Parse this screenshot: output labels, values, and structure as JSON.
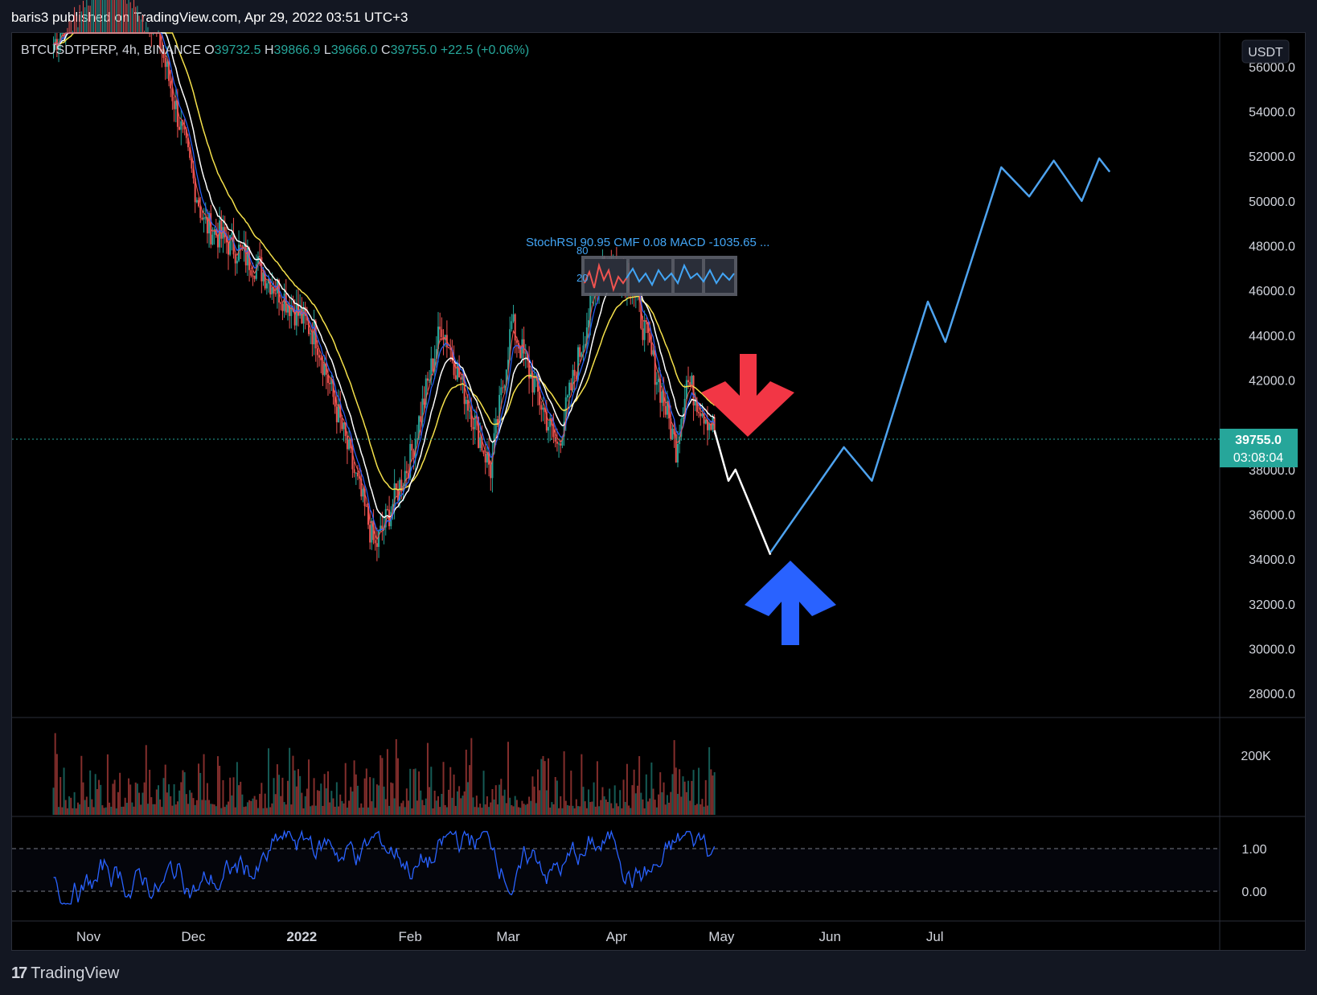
{
  "header": {
    "publisher": "baris3 published on TradingView.com, Apr 29, 2022 03:51 UTC+3"
  },
  "legend": {
    "symbol": "BTCUSDTPERP, 4h, BINANCE",
    "open_label": "O",
    "open": "39732.5",
    "high_label": "H",
    "high": "39866.9",
    "low_label": "L",
    "low": "39666.0",
    "close_label": "C",
    "close": "39755.0",
    "change": "+22.5 (+0.06%)"
  },
  "price_axis": {
    "currency": "USDT",
    "ticks": [
      "56000.0",
      "54000.0",
      "52000.0",
      "50000.0",
      "48000.0",
      "46000.0",
      "44000.0",
      "42000.0",
      "38000.0",
      "36000.0",
      "34000.0",
      "32000.0",
      "30000.0",
      "28000.0"
    ],
    "last_price": "39755.0",
    "countdown": "03:08:04"
  },
  "volume_axis": {
    "ticks": [
      "200K"
    ]
  },
  "stochrsi_axis": {
    "ticks": [
      "1.00",
      "0.00"
    ]
  },
  "time_axis": {
    "ticks": [
      "Nov",
      "Dec",
      "2022",
      "Feb",
      "Mar",
      "Apr",
      "May",
      "Jun",
      "Jul"
    ]
  },
  "overlay": {
    "label": "StochRSI 90.95 CMF 0.08 MACD -1035.65 ...",
    "level_80": "80",
    "level_20": "20"
  },
  "footer": {
    "brand": "TradingView"
  },
  "colors": {
    "up": "#26a69a",
    "down": "#ef5350",
    "ema_white": "#ffffff",
    "ema_yellow": "#f5e14b",
    "ema_red": "#ef5350",
    "ema_blue": "#2962ff",
    "projection_blue": "#4ea3ef",
    "arrow_red": "#f23645",
    "arrow_blue": "#2962ff",
    "stoch_line": "#2962ff"
  },
  "chart_data": {
    "type": "line",
    "title": "BTCUSDTPERP, 4h, BINANCE",
    "xlabel": "",
    "ylabel": "",
    "ylim": [
      27000,
      57500
    ],
    "x_ticks": [
      "Nov",
      "Dec",
      "2022",
      "Feb",
      "Mar",
      "Apr",
      "May",
      "Jun",
      "Jul"
    ],
    "series": [
      {
        "kind": "price_path",
        "x": [
          "2021-10-22",
          "2021-11-05",
          "2021-11-20",
          "2021-12-04",
          "2021-12-20",
          "2022-01-05",
          "2022-01-22",
          "2022-02-01",
          "2022-02-10",
          "2022-02-24",
          "2022-03-02",
          "2022-03-15",
          "2022-03-28",
          "2022-04-05",
          "2022-04-18",
          "2022-04-21",
          "2022-04-29"
        ],
        "values": [
          57000,
          61000,
          58000,
          49000,
          47000,
          44000,
          34500,
          38500,
          44500,
          38000,
          44500,
          39000,
          47500,
          46500,
          39000,
          42000,
          39755
        ]
      },
      {
        "kind": "projection_white",
        "x": [
          "2022-04-29",
          "2022-05-03",
          "2022-05-05",
          "2022-05-09",
          "2022-05-15"
        ],
        "values": [
          39755,
          37500,
          38000,
          36500,
          34200
        ]
      },
      {
        "kind": "projection_blue",
        "x": [
          "2022-05-15",
          "2022-06-05",
          "2022-06-13",
          "2022-06-29",
          "2022-07-04",
          "2022-07-20",
          "2022-07-28",
          "2022-08-04",
          "2022-08-12",
          "2022-08-17",
          "2022-08-20"
        ],
        "values": [
          34300,
          39000,
          37500,
          45500,
          43700,
          51500,
          50200,
          51800,
          50000,
          51900,
          51300
        ]
      }
    ],
    "last_price": 39755.0,
    "annotations": [
      "red-down-arrow near 41000",
      "blue-up-arrow near 33500"
    ]
  }
}
